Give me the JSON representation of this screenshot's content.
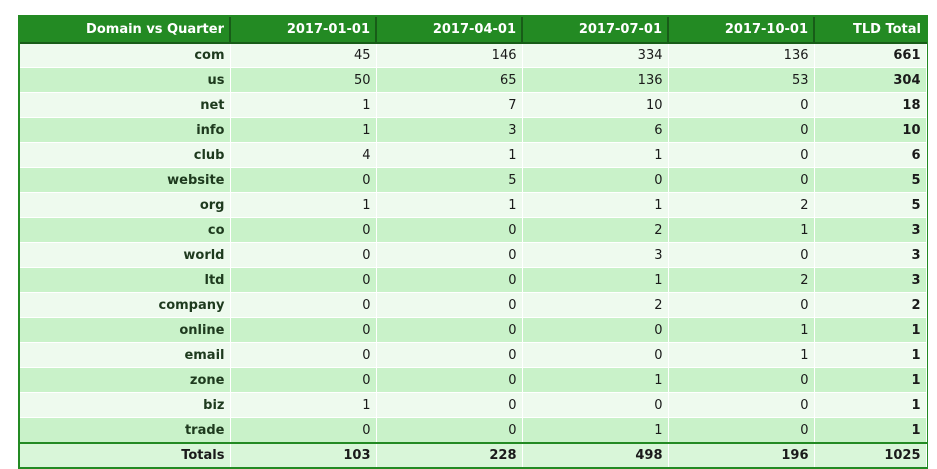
{
  "table": {
    "corner_label": "Domain vs Quarter",
    "columns": [
      "2017-01-01",
      "2017-04-01",
      "2017-07-01",
      "2017-10-01"
    ],
    "total_label": "TLD Total",
    "rows": [
      {
        "tld": "com",
        "values": [
          "45",
          "146",
          "334",
          "136"
        ],
        "total": "661"
      },
      {
        "tld": "us",
        "values": [
          "50",
          "65",
          "136",
          "53"
        ],
        "total": "304"
      },
      {
        "tld": "net",
        "values": [
          "1",
          "7",
          "10",
          "0"
        ],
        "total": "18"
      },
      {
        "tld": "info",
        "values": [
          "1",
          "3",
          "6",
          "0"
        ],
        "total": "10"
      },
      {
        "tld": "club",
        "values": [
          "4",
          "1",
          "1",
          "0"
        ],
        "total": "6"
      },
      {
        "tld": "website",
        "values": [
          "0",
          "5",
          "0",
          "0"
        ],
        "total": "5"
      },
      {
        "tld": "org",
        "values": [
          "1",
          "1",
          "1",
          "2"
        ],
        "total": "5"
      },
      {
        "tld": "co",
        "values": [
          "0",
          "0",
          "2",
          "1"
        ],
        "total": "3"
      },
      {
        "tld": "world",
        "values": [
          "0",
          "0",
          "3",
          "0"
        ],
        "total": "3"
      },
      {
        "tld": "ltd",
        "values": [
          "0",
          "0",
          "1",
          "2"
        ],
        "total": "3"
      },
      {
        "tld": "company",
        "values": [
          "0",
          "0",
          "2",
          "0"
        ],
        "total": "2"
      },
      {
        "tld": "online",
        "values": [
          "0",
          "0",
          "0",
          "1"
        ],
        "total": "1"
      },
      {
        "tld": "email",
        "values": [
          "0",
          "0",
          "0",
          "1"
        ],
        "total": "1"
      },
      {
        "tld": "zone",
        "values": [
          "0",
          "0",
          "1",
          "0"
        ],
        "total": "1"
      },
      {
        "tld": "biz",
        "values": [
          "1",
          "0",
          "0",
          "0"
        ],
        "total": "1"
      },
      {
        "tld": "trade",
        "values": [
          "0",
          "0",
          "1",
          "0"
        ],
        "total": "1"
      }
    ],
    "totals": {
      "label": "Totals",
      "values": [
        "103",
        "228",
        "498",
        "196"
      ],
      "grand_total": "1025"
    },
    "colors": {
      "header_bg": "#238a23",
      "row_light": "#eefaee",
      "row_dark": "#c9f2c9"
    }
  }
}
